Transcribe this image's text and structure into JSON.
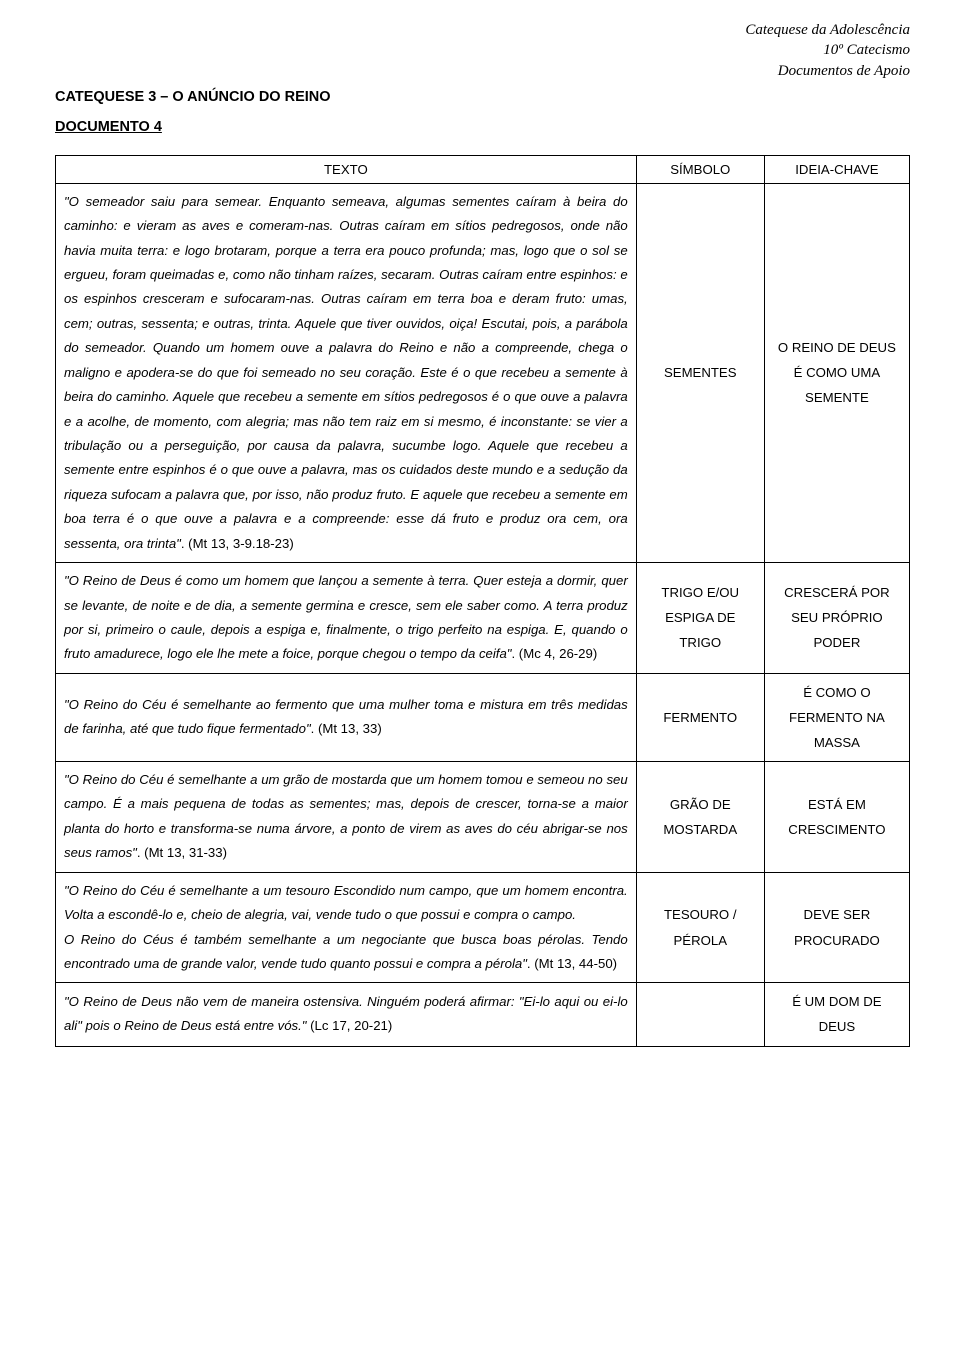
{
  "header": {
    "line1": "Catequese da Adolescência",
    "line2": "10º Catecismo",
    "line3": "Documentos de Apoio"
  },
  "title": "CATEQUESE 3 – O ANÚNCIO DO REINO",
  "docnum": "DOCUMENTO 4",
  "table": {
    "headers": {
      "texto": "TEXTO",
      "simbolo": "SÍMBOLO",
      "ideia": "IDEIA-CHAVE"
    },
    "rows": [
      {
        "texto_quote": "\"O semeador saiu para semear. Enquanto semeava, algumas sementes caíram à beira do caminho: e vieram as aves e comeram-nas. Outras caíram em sítios pedregosos, onde não havia muita terra: e logo brotaram, porque a terra era pouco profunda; mas, logo que o sol se ergueu, foram queimadas e, como não tinham raízes, secaram. Outras caíram entre espinhos: e os espinhos cresceram e sufocaram-nas. Outras caíram em terra boa e deram fruto: umas, cem; outras, sessenta; e outras, trinta. Aquele que tiver ouvidos, oiça! Escutai, pois, a parábola do semeador. Quando um homem ouve a palavra do Reino e não a compreende, chega o maligno e apodera-se do que foi semeado no seu coração. Este é o que recebeu a semente à beira do caminho. Aquele que recebeu a semente em sítios pedregosos é o que ouve a palavra e a acolhe, de momento, com alegria; mas não tem raiz em si mesmo, é inconstante: se vier a tribulação ou a perseguição, por causa da palavra, sucumbe logo. Aquele que recebeu a semente entre espinhos é o que ouve a palavra, mas os cuidados deste mundo e a sedução da riqueza sufocam a palavra que, por isso, não produz fruto. E aquele que recebeu a semente em boa terra é o que ouve a palavra e a compreende: esse dá fruto e produz ora cem, ora sessenta, ora trinta\"",
        "texto_ref": ". (Mt 13, 3-9.18-23)",
        "simbolo": "SEMENTES",
        "ideia": "O REINO DE DEUS É COMO UMA SEMENTE"
      },
      {
        "texto_quote": "\"O Reino de Deus é como um homem que lançou a semente à terra. Quer esteja a dormir, quer se levante, de noite e de dia, a semente germina e cresce, sem ele saber como. A terra produz por si, primeiro o caule, depois a espiga e, finalmente, o trigo perfeito na espiga. E, quando o fruto amadurece, logo ele lhe mete a foice, porque chegou o tempo da ceifa\"",
        "texto_ref": ". (Mc 4, 26-29)",
        "simbolo": "TRIGO E/OU ESPIGA DE TRIGO",
        "ideia": "CRESCERÁ POR SEU PRÓPRIO PODER"
      },
      {
        "texto_quote": "\"O Reino do Céu é semelhante ao fermento que uma mulher toma e mistura em três medidas de farinha, até que tudo fique fermentado\"",
        "texto_ref": ". (Mt 13, 33)",
        "simbolo": "FERMENTO",
        "ideia": "É COMO O FERMENTO NA MASSA"
      },
      {
        "texto_quote": "\"O Reino do Céu é semelhante a um grão de mostarda que um homem tomou e semeou no seu campo. É a mais pequena de todas as sementes; mas, depois de crescer, torna-se a maior planta do horto e transforma-se numa árvore, a ponto de virem as aves do céu abrigar-se nos seus ramos\"",
        "texto_ref": ". (Mt 13, 31-33)",
        "simbolo": "GRÃO DE MOSTARDA",
        "ideia": "ESTÁ EM CRESCIMENTO"
      },
      {
        "texto_quote_a": "\"O Reino do Céu é semelhante a um tesouro Escondido num campo, que um homem encontra. Volta a escondê-lo e, cheio de alegria, vai, vende tudo o que possui e compra o campo.",
        "texto_quote_b": "O Reino do Céus é também semelhante a um negociante que busca boas pérolas. Tendo encontrado uma de grande valor, vende tudo quanto possui e compra a pérola\"",
        "texto_ref": ". (Mt 13, 44-50)",
        "simbolo": "TESOURO / PÉROLA",
        "ideia": "DEVE SER PROCURADO"
      },
      {
        "texto_quote_a": "\"O Reino de Deus não vem de maneira ostensiva. Ninguém poderá afirmar: \"Ei-lo aqui ou ei-lo ali\" pois o Reino de Deus está entre vós.\"",
        "texto_ref": " (Lc 17, 20-21)",
        "simbolo": "",
        "ideia": "É UM DOM DE DEUS"
      }
    ]
  }
}
